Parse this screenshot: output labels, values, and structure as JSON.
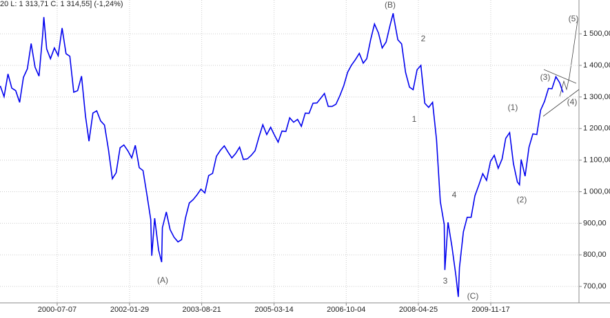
{
  "chart_data": {
    "type": "line",
    "header": "20  L: 1 313,71  C: 1 314,55] (-1,24%)",
    "x": [
      "1999-04-15",
      "1999-05-15",
      "1999-06-15",
      "1999-07-15",
      "1999-08-15",
      "1999-09-15",
      "1999-10-15",
      "1999-11-15",
      "1999-12-15",
      "2000-01-15",
      "2000-02-15",
      "2000-03-15",
      "2000-03-24",
      "2000-04-15",
      "2000-05-15",
      "2000-06-15",
      "2000-07-15",
      "2000-08-15",
      "2000-09-15",
      "2000-10-15",
      "2000-11-15",
      "2000-12-15",
      "2001-01-15",
      "2001-02-15",
      "2001-03-15",
      "2001-04-15",
      "2001-05-15",
      "2001-06-15",
      "2001-07-15",
      "2001-08-15",
      "2001-09-15",
      "2001-10-15",
      "2001-11-15",
      "2001-12-15",
      "2002-01-15",
      "2002-02-15",
      "2002-03-15",
      "2002-04-15",
      "2002-05-15",
      "2002-06-15",
      "2002-07-15",
      "2002-07-23",
      "2002-08-15",
      "2002-09-15",
      "2002-10-09",
      "2002-10-15",
      "2002-11-15",
      "2002-12-15",
      "2003-01-15",
      "2003-02-15",
      "2003-03-15",
      "2003-04-15",
      "2003-05-15",
      "2003-06-15",
      "2003-07-15",
      "2003-08-15",
      "2003-09-15",
      "2003-10-15",
      "2003-11-15",
      "2003-12-15",
      "2004-01-15",
      "2004-02-15",
      "2004-03-15",
      "2004-04-15",
      "2004-05-15",
      "2004-06-15",
      "2004-07-15",
      "2004-08-15",
      "2004-09-15",
      "2004-10-15",
      "2004-11-15",
      "2004-12-15",
      "2005-01-15",
      "2005-02-15",
      "2005-03-15",
      "2005-04-15",
      "2005-05-15",
      "2005-06-15",
      "2005-07-15",
      "2005-08-15",
      "2005-09-15",
      "2005-10-15",
      "2005-11-15",
      "2005-12-15",
      "2006-01-15",
      "2006-02-15",
      "2006-03-15",
      "2006-04-15",
      "2006-05-15",
      "2006-06-15",
      "2006-07-15",
      "2006-08-15",
      "2006-09-15",
      "2006-10-15",
      "2006-11-15",
      "2006-12-15",
      "2007-01-15",
      "2007-02-15",
      "2007-03-15",
      "2007-04-15",
      "2007-05-15",
      "2007-06-15",
      "2007-07-15",
      "2007-08-15",
      "2007-09-15",
      "2007-10-09",
      "2007-10-15",
      "2007-11-15",
      "2007-12-15",
      "2008-01-15",
      "2008-02-15",
      "2008-03-15",
      "2008-04-15",
      "2008-05-15",
      "2008-06-15",
      "2008-07-15",
      "2008-08-15",
      "2008-09-15",
      "2008-10-15",
      "2008-11-15",
      "2008-11-20",
      "2008-12-15",
      "2009-01-15",
      "2009-02-15",
      "2009-03-06",
      "2009-03-15",
      "2009-04-15",
      "2009-05-15",
      "2009-06-15",
      "2009-07-15",
      "2009-08-15",
      "2009-09-15",
      "2009-10-15",
      "2009-11-15",
      "2009-12-15",
      "2010-01-15",
      "2010-02-15",
      "2010-03-15",
      "2010-04-15",
      "2010-05-15",
      "2010-06-15",
      "2010-07-02",
      "2010-07-15",
      "2010-08-15",
      "2010-09-15",
      "2010-10-15",
      "2010-11-15",
      "2010-12-15",
      "2011-01-15",
      "2011-02-15",
      "2011-03-15",
      "2011-04-15",
      "2011-05-15",
      "2011-06-10"
    ],
    "series": [
      {
        "color": "#0000ee",
        "values": [
          1335,
          1301,
          1373,
          1328,
          1320,
          1283,
          1362,
          1389,
          1469,
          1394,
          1366,
          1499,
          1553,
          1452,
          1421,
          1455,
          1431,
          1518,
          1437,
          1429,
          1315,
          1320,
          1366,
          1240,
          1160,
          1249,
          1256,
          1224,
          1211,
          1134,
          1041,
          1060,
          1139,
          1148,
          1130,
          1107,
          1147,
          1076,
          1067,
          990,
          912,
          797,
          916,
          815,
          777,
          886,
          936,
          880,
          856,
          841,
          848,
          917,
          964,
          975,
          990,
          1008,
          996,
          1051,
          1058,
          1112,
          1131,
          1145,
          1126,
          1107,
          1121,
          1141,
          1102,
          1104,
          1115,
          1130,
          1174,
          1212,
          1181,
          1204,
          1181,
          1157,
          1192,
          1191,
          1234,
          1220,
          1229,
          1207,
          1249,
          1248,
          1280,
          1281,
          1295,
          1311,
          1270,
          1270,
          1277,
          1304,
          1336,
          1378,
          1401,
          1418,
          1438,
          1407,
          1421,
          1482,
          1531,
          1503,
          1455,
          1474,
          1527,
          1565,
          1549,
          1481,
          1468,
          1378,
          1331,
          1323,
          1386,
          1400,
          1280,
          1267,
          1283,
          1165,
          969,
          896,
          752,
          903,
          826,
          735,
          667,
          760,
          873,
          919,
          919,
          987,
          1021,
          1057,
          1036,
          1096,
          1115,
          1074,
          1104,
          1169,
          1187,
          1089,
          1031,
          1022,
          1102,
          1049,
          1141,
          1183,
          1181,
          1258,
          1286,
          1327,
          1326,
          1364,
          1345,
          1314
        ]
      }
    ],
    "xlim": [
      "1999-04-13",
      "2011-10-14"
    ],
    "xticks": [
      "2000-07-07",
      "2002-01-29",
      "2003-08-21",
      "2005-03-14",
      "2006-10-04",
      "2008-04-25",
      "2009-11-17"
    ],
    "ylim": [
      648,
      1607
    ],
    "yticks": [
      {
        "value": 700,
        "label": "700,00"
      },
      {
        "value": 800,
        "label": "800,00"
      },
      {
        "value": 900,
        "label": "900,00"
      },
      {
        "value": 1000,
        "label": "1 000,00"
      },
      {
        "value": 1100,
        "label": "1 100,00"
      },
      {
        "value": 1200,
        "label": "1 200,00"
      },
      {
        "value": 1300,
        "label": "1 300,00"
      },
      {
        "value": 1400,
        "label": "1 400,00"
      },
      {
        "value": 1500,
        "label": "1 500,00"
      }
    ],
    "grid": true,
    "annotations": [
      "(B)",
      "2",
      "1",
      "(A)",
      "4",
      "3",
      "(C)",
      "(1)",
      "(2)",
      "(3)",
      "(4)",
      "(5)"
    ]
  }
}
